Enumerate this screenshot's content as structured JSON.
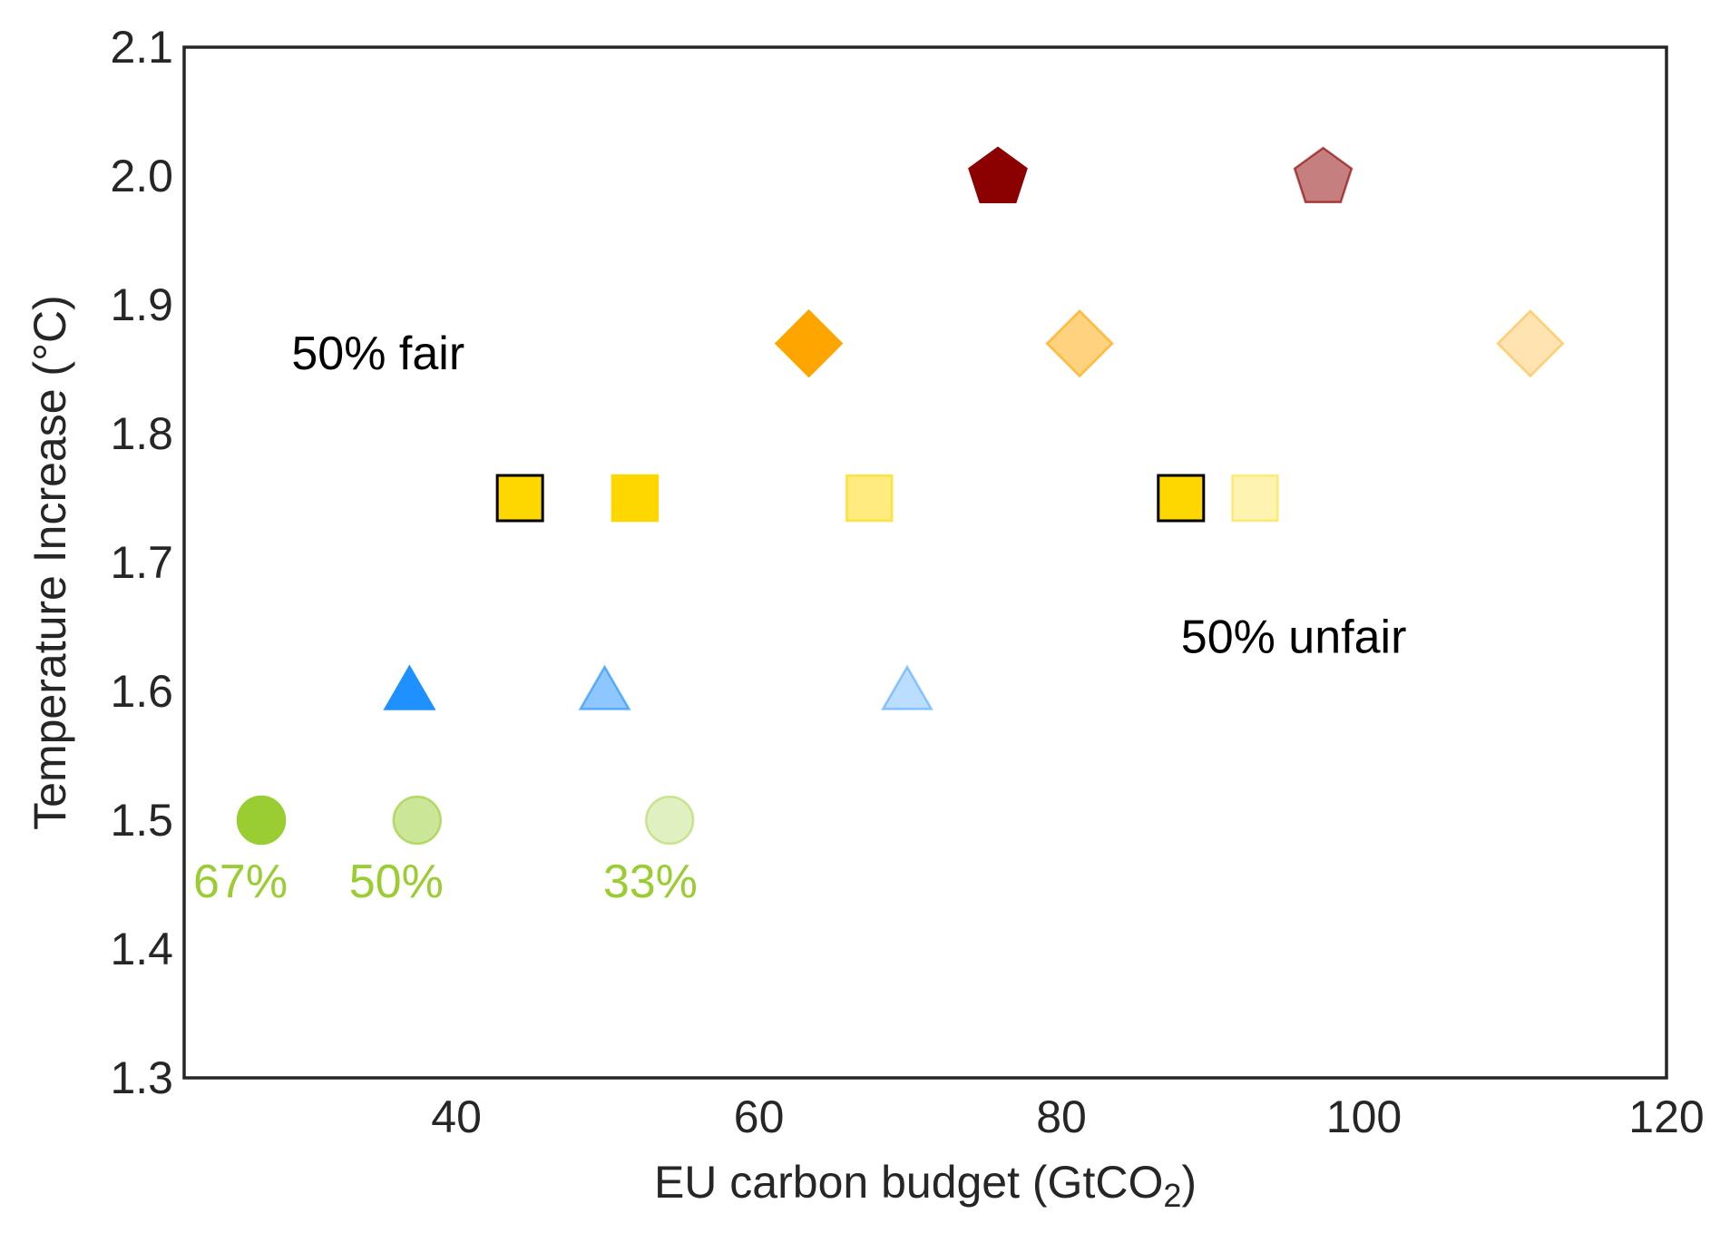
{
  "chart_data": {
    "type": "scatter",
    "title": "",
    "xlabel": "EU carbon budget (GtCO",
    "xlabel_sub": "2",
    "xlabel_end": ")",
    "ylabel": "Temperature Increase (°C)",
    "xlim": [
      22,
      120
    ],
    "ylim": [
      1.3,
      2.1
    ],
    "xticks": [
      {
        "value": 40,
        "label": "40"
      },
      {
        "value": 60,
        "label": "60"
      },
      {
        "value": 80,
        "label": "80"
      },
      {
        "value": 100,
        "label": "100"
      },
      {
        "value": 120,
        "label": "120"
      }
    ],
    "yticks": [
      {
        "value": 1.3,
        "label": "1.3"
      },
      {
        "value": 1.4,
        "label": "1.4"
      },
      {
        "value": 1.5,
        "label": "1.5"
      },
      {
        "value": 1.6,
        "label": "1.6"
      },
      {
        "value": 1.7,
        "label": "1.7"
      },
      {
        "value": 1.8,
        "label": "1.8"
      },
      {
        "value": 1.9,
        "label": "1.9"
      },
      {
        "value": 2.0,
        "label": "2.0"
      },
      {
        "value": 2.1,
        "label": "2.1"
      }
    ],
    "grid": false,
    "legend": "none",
    "series": [
      {
        "marker": "circle",
        "color": "#9acd32",
        "points": [
          {
            "x": 27.1,
            "y": 1.5,
            "alpha": 1.0
          },
          {
            "x": 37.4,
            "y": 1.5,
            "alpha": 0.5
          },
          {
            "x": 54.1,
            "y": 1.5,
            "alpha": 0.3
          }
        ]
      },
      {
        "marker": "triangle",
        "color": "#1e90ff",
        "points": [
          {
            "x": 36.9,
            "y": 1.6,
            "alpha": 1.0
          },
          {
            "x": 49.8,
            "y": 1.6,
            "alpha": 0.5
          },
          {
            "x": 69.8,
            "y": 1.6,
            "alpha": 0.3
          }
        ]
      },
      {
        "marker": "square",
        "color": "#ffd700",
        "points": [
          {
            "x": 44.2,
            "y": 1.75,
            "alpha": 1.0,
            "outlined": true
          },
          {
            "x": 51.8,
            "y": 1.75,
            "alpha": 1.0,
            "outlined": false
          },
          {
            "x": 67.3,
            "y": 1.75,
            "alpha": 0.5,
            "outlined": false
          },
          {
            "x": 87.9,
            "y": 1.75,
            "alpha": 1.0,
            "outlined": true
          },
          {
            "x": 92.8,
            "y": 1.75,
            "alpha": 0.3,
            "outlined": false
          }
        ]
      },
      {
        "marker": "diamond",
        "color": "#ffa500",
        "points": [
          {
            "x": 63.3,
            "y": 1.87,
            "alpha": 1.0
          },
          {
            "x": 81.2,
            "y": 1.87,
            "alpha": 0.5
          },
          {
            "x": 111.0,
            "y": 1.87,
            "alpha": 0.3
          }
        ]
      },
      {
        "marker": "pentagon",
        "color": "#8b0000",
        "points": [
          {
            "x": 75.8,
            "y": 2.0,
            "alpha": 1.0
          },
          {
            "x": 97.3,
            "y": 2.0,
            "alpha": 0.5
          }
        ]
      }
    ],
    "annotations": [
      {
        "text": "50%  fair",
        "x": 29.1,
        "y": 1.85,
        "color": "#000000"
      },
      {
        "text": "50% unfair",
        "x": 87.9,
        "y": 1.63,
        "color": "#000000"
      },
      {
        "text": "67%",
        "x": 22.6,
        "y": 1.44,
        "color": "#9acd32"
      },
      {
        "text": "50%",
        "x": 32.9,
        "y": 1.44,
        "color": "#9acd32"
      },
      {
        "text": "33%",
        "x": 49.7,
        "y": 1.44,
        "color": "#9acd32"
      }
    ]
  }
}
